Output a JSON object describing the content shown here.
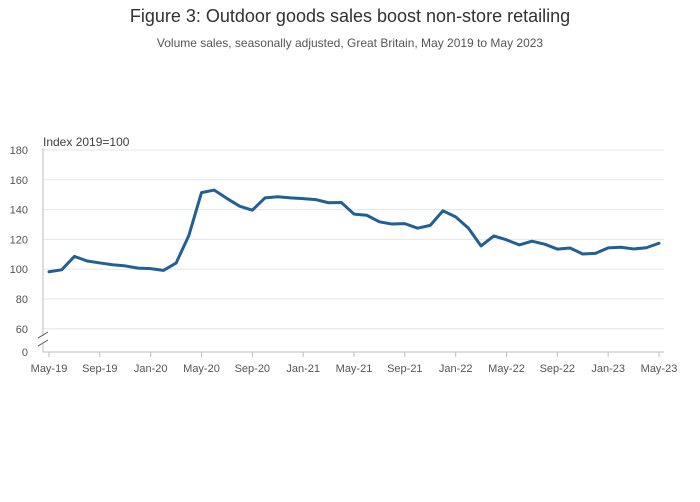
{
  "chart_data": {
    "type": "line",
    "title": "Figure 3: Outdoor goods sales boost non-store retailing",
    "subtitle": "Volume sales, seasonally adjusted, Great Britain, May 2019 to May 2023",
    "ylabel": "Index 2019=100",
    "ylim": [
      0,
      180
    ],
    "y_axis_break": true,
    "y_ticks": [
      0,
      60,
      80,
      100,
      120,
      140,
      160,
      180
    ],
    "x_ticks": [
      "May-19",
      "Sep-19",
      "Jan-20",
      "May-20",
      "Sep-20",
      "Jan-21",
      "May-21",
      "Sep-21",
      "Jan-22",
      "May-22",
      "Sep-22",
      "Jan-23",
      "May-23"
    ],
    "grid": true,
    "line_color": "#206095",
    "x": [
      "May-19",
      "Jun-19",
      "Jul-19",
      "Aug-19",
      "Sep-19",
      "Oct-19",
      "Nov-19",
      "Dec-19",
      "Jan-20",
      "Feb-20",
      "Mar-20",
      "Apr-20",
      "May-20",
      "Jun-20",
      "Jul-20",
      "Aug-20",
      "Sep-20",
      "Oct-20",
      "Nov-20",
      "Dec-20",
      "Jan-21",
      "Feb-21",
      "Mar-21",
      "Apr-21",
      "May-21",
      "Jun-21",
      "Jul-21",
      "Aug-21",
      "Sep-21",
      "Oct-21",
      "Nov-21",
      "Dec-21",
      "Jan-22",
      "Feb-22",
      "Mar-22",
      "Apr-22",
      "May-22",
      "Jun-22",
      "Jul-22",
      "Aug-22",
      "Sep-22",
      "Oct-22",
      "Nov-22",
      "Dec-22",
      "Jan-23",
      "Feb-23",
      "Mar-23",
      "Apr-23",
      "May-23"
    ],
    "series": [
      {
        "values": [
          98.3,
          99.6,
          108.6,
          105.5,
          104.2,
          103.0,
          102.2,
          100.7,
          100.4,
          99.2,
          104.1,
          122.5,
          151.4,
          153.1,
          147.5,
          142.3,
          139.6,
          147.9,
          148.6,
          147.9,
          147.4,
          146.7,
          144.6,
          144.8,
          137.0,
          136.2,
          131.8,
          130.3,
          130.6,
          127.5,
          129.4,
          139.2,
          135.1,
          127.6,
          115.6,
          122.3,
          119.7,
          116.3,
          118.8,
          116.8,
          113.5,
          114.2,
          110.2,
          110.6,
          114.3,
          114.7,
          113.6,
          114.4,
          117.4
        ]
      }
    ]
  }
}
